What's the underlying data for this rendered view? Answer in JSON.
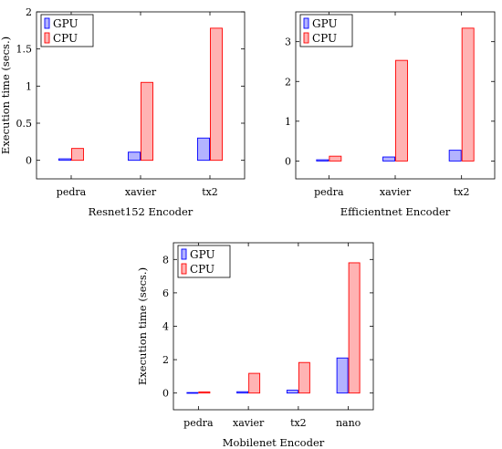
{
  "colors": {
    "gpu_fill": "#b3b3ff",
    "gpu_stroke": "#0000ff",
    "cpu_fill": "#ffb3b3",
    "cpu_stroke": "#ff0000"
  },
  "chart_data": [
    {
      "type": "bar",
      "categories": [
        "pedra",
        "xavier",
        "tx2"
      ],
      "series": [
        {
          "name": "GPU",
          "values": [
            0.02,
            0.11,
            0.3
          ]
        },
        {
          "name": "CPU",
          "values": [
            0.16,
            1.05,
            1.78
          ]
        }
      ],
      "ylim": [
        -0.25,
        2.0
      ],
      "yticks": [
        0,
        0.5,
        1,
        1.5,
        2
      ],
      "ytick_labels": [
        "0",
        "0.5",
        "1",
        "1.5",
        "2"
      ],
      "xlabel": "Resnet152 Encoder",
      "ylabel": "Execution time (secs.)",
      "legend": "top-left",
      "grid": false
    },
    {
      "type": "bar",
      "categories": [
        "pedra",
        "xavier",
        "tx2"
      ],
      "series": [
        {
          "name": "GPU",
          "values": [
            0.03,
            0.1,
            0.27
          ]
        },
        {
          "name": "CPU",
          "values": [
            0.12,
            2.53,
            3.34
          ]
        }
      ],
      "ylim": [
        -0.45,
        3.75
      ],
      "yticks": [
        0,
        1,
        2,
        3
      ],
      "ytick_labels": [
        "0",
        "1",
        "2",
        "3"
      ],
      "xlabel": "Efficientnet Encoder",
      "ylabel": "",
      "legend": "top-left",
      "grid": false
    },
    {
      "type": "bar",
      "categories": [
        "pedra",
        "xavier",
        "tx2",
        "nano"
      ],
      "series": [
        {
          "name": "GPU",
          "values": [
            0.03,
            0.08,
            0.17,
            2.1
          ]
        },
        {
          "name": "CPU",
          "values": [
            0.07,
            1.18,
            1.83,
            7.8
          ]
        }
      ],
      "ylim": [
        -1.0,
        9.0
      ],
      "yticks": [
        0,
        2,
        4,
        6,
        8
      ],
      "ytick_labels": [
        "0",
        "2",
        "4",
        "6",
        "8"
      ],
      "xlabel": "Mobilenet Encoder",
      "ylabel": "Execution time (secs.)",
      "legend": "top-left",
      "grid": false
    }
  ]
}
